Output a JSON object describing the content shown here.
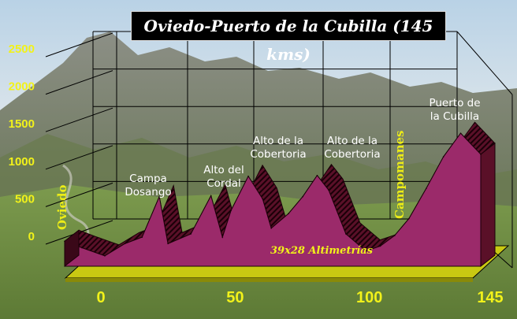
{
  "chart_data": {
    "type": "area",
    "title": "Oviedo-Puerto de la Cubilla (145 kms)",
    "xlabel": "",
    "ylabel": "",
    "xlim": [
      0,
      145
    ],
    "ylim": [
      0,
      2500
    ],
    "x_ticks": [
      {
        "value": 0,
        "label": "0"
      },
      {
        "value": 50,
        "label": "50"
      },
      {
        "value": 100,
        "label": "100"
      },
      {
        "value": 145,
        "label": "145"
      }
    ],
    "y_ticks": [
      {
        "value": 0,
        "label": "0"
      },
      {
        "value": 500,
        "label": "500"
      },
      {
        "value": 1000,
        "label": "1000"
      },
      {
        "value": 1500,
        "label": "1500"
      },
      {
        "value": 2000,
        "label": "2000"
      },
      {
        "value": 2500,
        "label": "2500"
      }
    ],
    "grid": true,
    "series": [
      {
        "x": [
          0,
          6,
          14,
          21,
          27,
          33,
          36,
          44,
          51,
          55,
          58,
          64,
          69,
          72,
          78,
          83,
          88,
          92,
          98,
          105,
          110,
          115,
          120,
          126,
          132,
          138,
          145
        ],
        "y": [
          230,
          150,
          50,
          200,
          280,
          780,
          200,
          320,
          790,
          280,
          610,
          1030,
          750,
          390,
          570,
          780,
          1040,
          860,
          320,
          110,
          170,
          300,
          510,
          880,
          1270,
          1560,
          1300
        ]
      }
    ],
    "annotations": [
      {
        "id": "oviedo",
        "text": "Oviedo",
        "x": 0
      },
      {
        "id": "campa",
        "lines": [
          "Campa",
          "Dosango"
        ],
        "x": 33
      },
      {
        "id": "cordal",
        "lines": [
          "Alto del",
          "Cordal"
        ],
        "x": 51
      },
      {
        "id": "cobertoria1",
        "lines": [
          "Alto de la",
          "Cobertoria"
        ],
        "x": 64
      },
      {
        "id": "cobertoria2",
        "lines": [
          "Alto de la",
          "Cobertoria"
        ],
        "x": 88
      },
      {
        "id": "campomanes",
        "text": "Campomanes",
        "x": 105
      },
      {
        "id": "cubilla",
        "lines": [
          "Puerto de",
          "la Cubilla"
        ],
        "x": 138
      }
    ],
    "watermark": "39x28 Altimetrías"
  }
}
